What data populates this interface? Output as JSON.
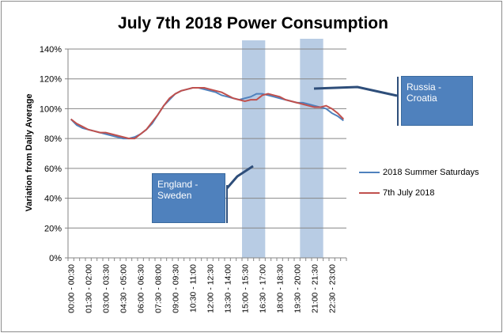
{
  "chart_data": {
    "type": "line",
    "title": "July 7th 2018 Power Consumption",
    "ylabel": "Variation from Daily Average",
    "xlabel": "",
    "ylim": [
      0,
      140
    ],
    "yticks": [
      "0%",
      "20%",
      "40%",
      "60%",
      "80%",
      "100%",
      "120%",
      "140%"
    ],
    "grid": true,
    "legend_position": "right",
    "xtick_labels": [
      "00:00 - 00:30",
      "01:30 - 02:00",
      "03:00 - 03:30",
      "04:30 - 05:00",
      "06:00 - 06:30",
      "07:30 - 08:00",
      "09:00 - 09:30",
      "10:30 - 11:00",
      "12:00 - 12:30",
      "13:30 - 14:00",
      "15:00 - 15:30",
      "16:30 - 17:00",
      "18:00 - 18:30",
      "19:30 - 20:00",
      "21:00 - 21:30",
      "22:30 - 23:00"
    ],
    "series": [
      {
        "name": "2018 Summer Saturdays",
        "color": "#4f81bd",
        "values": [
          93,
          89,
          87,
          86,
          85,
          84,
          83,
          82,
          81,
          80,
          80,
          81,
          83,
          86,
          90,
          96,
          102,
          106,
          110,
          112,
          113,
          114,
          114,
          113,
          112,
          111,
          109,
          108,
          107,
          106,
          107,
          108,
          110,
          110,
          109,
          108,
          107,
          106,
          105,
          104,
          104,
          103,
          102,
          101,
          100,
          97,
          95,
          92
        ]
      },
      {
        "name": "7th July 2018",
        "color": "#c0504d",
        "values": [
          93,
          90,
          88,
          86,
          85,
          84,
          84,
          83,
          82,
          81,
          80,
          80,
          83,
          86,
          91,
          96,
          102,
          107,
          110,
          112,
          113,
          114,
          114,
          114,
          113,
          112,
          111,
          109,
          107,
          106,
          105,
          106,
          106,
          109,
          110,
          109,
          108,
          106,
          105,
          104,
          103,
          102,
          101,
          101,
          102,
          100,
          97,
          93
        ]
      }
    ],
    "highlights": [
      {
        "start_index": 30,
        "end_index": 34,
        "color": "#b8cce4"
      },
      {
        "start_index": 40,
        "end_index": 44,
        "color": "#b8cce4"
      }
    ],
    "annotations": [
      {
        "text": "England - Sweden"
      },
      {
        "text": "Russia - Croatia"
      }
    ]
  }
}
